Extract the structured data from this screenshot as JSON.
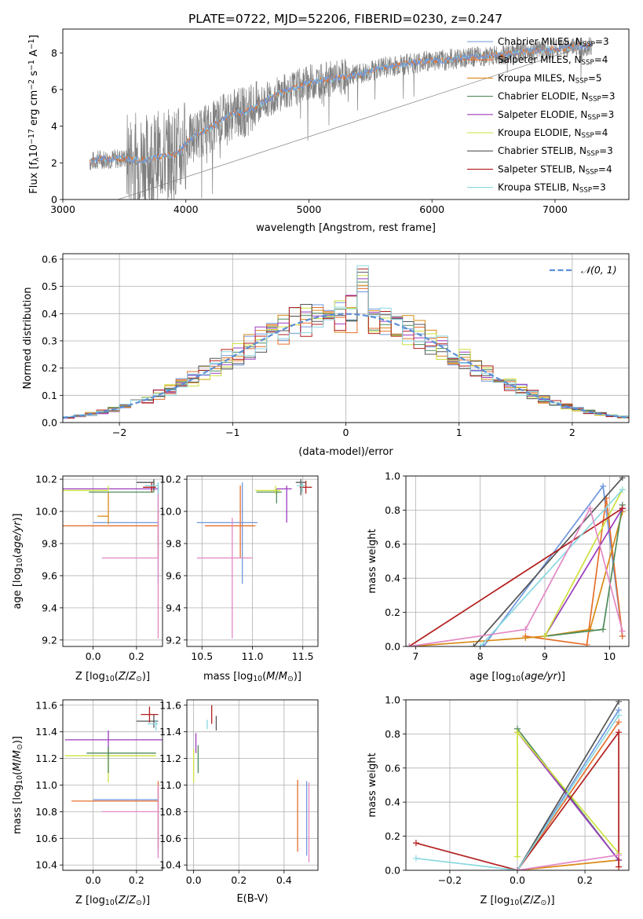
{
  "figure_title": "PLATE=0722, MJD=52206, FIBERID=0230, z=0.247",
  "colors": {
    "Chabrier MILES": "#6f97de",
    "Salpeter MILES": "#e56f2c",
    "Kroupa MILES": "#d98a16",
    "Chabrier ELODIE": "#4f8a5a",
    "Salpeter ELODIE": "#9b3bbf",
    "Kroupa ELODIE": "#cde13c",
    "Chabrier STELIB": "#555555",
    "Salpeter STELIB": "#b31f1f",
    "Kroupa STELIB": "#8ad8e0",
    "Chabrier MILES 2": "#6a8fd8",
    "data": "#7f7f7f",
    "pink": "#e388c4",
    "orange2": "#e0781e"
  },
  "chart_data": [
    {
      "id": "spectrum",
      "type": "line",
      "title": "PLATE=0722, MJD=52206, FIBERID=0230, z=0.247",
      "xlabel": "wavelength [Angstrom, rest frame]",
      "ylabel": "Flux [f",
      "xlim": [
        3000,
        7600
      ],
      "ylim": [
        0,
        9.3
      ],
      "xticks": [
        "3000",
        "4000",
        "5000",
        "6000",
        "7000"
      ],
      "yticks": [
        "0",
        "2",
        "4",
        "6",
        "8"
      ],
      "grid": false,
      "legend_position": "upper-right",
      "continuum_x": [
        3220,
        3300,
        3400,
        3500,
        3600,
        3700,
        3800,
        3900,
        3950,
        4000,
        4100,
        4200,
        4300,
        4400,
        4500,
        4600,
        4700,
        4800,
        4900,
        5000,
        5100,
        5200,
        5300,
        5400,
        5500,
        5600,
        5700,
        5800,
        5900,
        6000,
        6100,
        6200,
        6300,
        6400,
        6500,
        6600,
        6700,
        6800,
        6900,
        7000,
        7100,
        7200,
        7300
      ],
      "continuum_y": [
        2.05,
        2.2,
        2.2,
        2.25,
        2.15,
        2.2,
        2.35,
        2.45,
        2.6,
        3.1,
        3.6,
        3.9,
        4.4,
        4.7,
        4.8,
        5.2,
        5.6,
        5.9,
        6.1,
        6.4,
        6.5,
        6.6,
        6.7,
        6.8,
        7.0,
        7.2,
        7.3,
        7.4,
        7.5,
        7.6,
        7.6,
        7.7,
        7.75,
        7.8,
        7.85,
        7.9,
        8.0,
        8.1,
        8.15,
        8.2,
        8.3,
        8.35,
        8.4
      ],
      "series": [
        {
          "name": "Chabrier MILES, N",
          "sub": "SSP",
          "suffix": "=3"
        },
        {
          "name": "Salpeter MILES, N",
          "sub": "SSP",
          "suffix": "=4"
        },
        {
          "name": "Kroupa MILES, N",
          "sub": "SSP",
          "suffix": "=5"
        },
        {
          "name": "Chabrier ELODIE, N",
          "sub": "SSP",
          "suffix": "=3"
        },
        {
          "name": "Salpeter ELODIE, N",
          "sub": "SSP",
          "suffix": "=3"
        },
        {
          "name": "Kroupa ELODIE, N",
          "sub": "SSP",
          "suffix": "=4"
        },
        {
          "name": "Chabrier STELIB, N",
          "sub": "SSP",
          "suffix": "=3"
        },
        {
          "name": "Salpeter STELIB, N",
          "sub": "SSP",
          "suffix": "=4"
        },
        {
          "name": "Kroupa STELIB, N",
          "sub": "SSP",
          "suffix": "=3"
        }
      ]
    },
    {
      "id": "residuals",
      "type": "histogram",
      "xlabel": "(data-model)/error",
      "ylabel": "Normed distribution",
      "xlim": [
        -2.5,
        2.5
      ],
      "ylim": [
        0,
        0.62
      ],
      "xticks": [
        "−2",
        "−1",
        "0",
        "1",
        "2"
      ],
      "yticks": [
        "0.0",
        "0.1",
        "0.2",
        "0.3",
        "0.4",
        "0.5",
        "0.6"
      ],
      "grid": true,
      "legend_position": "upper-right",
      "legend": "𝒩(0, 1)",
      "bin_width": 0.1
    },
    {
      "id": "age-vs-Z",
      "type": "scatter",
      "xlabel": "Z [log",
      "ylabel": "age  [log",
      "xlim": [
        -0.14,
        0.32
      ],
      "ylim": [
        9.16,
        10.22
      ],
      "xticks": [
        "0.0",
        "0.2"
      ],
      "yticks": [
        "9.2",
        "9.4",
        "9.6",
        "9.8",
        "10.0",
        "10.2"
      ],
      "grid": true,
      "points": [
        {
          "series": "Chabrier MILES",
          "x": 0.3,
          "y": 9.93,
          "xerr": [
            0.3,
            0.0
          ],
          "yerr": [
            0.38,
            0.25
          ]
        },
        {
          "series": "Salpeter MILES",
          "x": 0.3,
          "y": 9.91,
          "xerr": [
            0.45,
            0.0
          ],
          "yerr": [
            0.2,
            0.1
          ]
        },
        {
          "series": "Kroupa MILES",
          "x": 0.07,
          "y": 9.97,
          "xerr": [
            0.05,
            0.0
          ],
          "yerr": [
            0.05,
            0.15
          ]
        },
        {
          "series": "Chabrier ELODIE",
          "x": 0.28,
          "y": 10.12,
          "xerr": [
            0.3,
            0.0
          ],
          "yerr": [
            0.0,
            0.04
          ]
        },
        {
          "series": "Salpeter ELODIE",
          "x": 0.3,
          "y": 10.14,
          "xerr": [
            0.45,
            0.0
          ],
          "yerr": [
            0.02,
            0.02
          ]
        },
        {
          "series": "Kroupa ELODIE",
          "x": 0.07,
          "y": 10.13,
          "xerr": [
            0.3,
            0.0
          ],
          "yerr": [
            0.0,
            0.03
          ]
        },
        {
          "series": "Chabrier STELIB",
          "x": 0.28,
          "y": 10.18,
          "xerr": [
            0.08,
            0.0
          ],
          "yerr": [
            0.05,
            0.02
          ]
        },
        {
          "series": "Salpeter STELIB",
          "x": 0.27,
          "y": 10.15,
          "xerr": [
            0.04,
            0.02
          ],
          "yerr": [
            0.03,
            0.03
          ]
        },
        {
          "series": "Kroupa STELIB",
          "x": 0.3,
          "y": 10.16,
          "xerr": [
            0.06,
            0.0
          ],
          "yerr": [
            0.06,
            0.02
          ]
        },
        {
          "series": "pink",
          "x": 0.3,
          "y": 9.71,
          "xerr": [
            0.26,
            0.0
          ],
          "yerr": [
            0.5,
            0.4
          ]
        }
      ]
    },
    {
      "id": "age-vs-mass",
      "type": "scatter",
      "xlabel": "mass [log",
      "ylabel": "",
      "xlim": [
        10.35,
        11.65
      ],
      "ylim": [
        9.16,
        10.22
      ],
      "xticks": [
        "10.5",
        "11.0",
        "11.5"
      ],
      "yticks": [
        "9.2",
        "9.4",
        "9.6",
        "9.8",
        "10.0",
        "10.2"
      ],
      "grid": true,
      "points": [
        {
          "series": "Chabrier MILES",
          "x": 10.9,
          "y": 9.93,
          "xerr": [
            0.45,
            0.15
          ],
          "yerr": [
            0.38,
            0.25
          ]
        },
        {
          "series": "Salpeter MILES",
          "x": 10.88,
          "y": 9.91,
          "xerr": [
            0.35,
            0.15
          ],
          "yerr": [
            0.2,
            0.25
          ]
        },
        {
          "series": "pink",
          "x": 10.8,
          "y": 9.71,
          "xerr": [
            0.35,
            0.2
          ],
          "yerr": [
            0.5,
            0.25
          ]
        },
        {
          "series": "Chabrier ELODIE",
          "x": 11.24,
          "y": 10.12,
          "xerr": [
            0.2,
            0.05
          ],
          "yerr": [
            0.07,
            0.02
          ]
        },
        {
          "series": "Kroupa ELODIE",
          "x": 11.23,
          "y": 10.13,
          "xerr": [
            0.2,
            0.05
          ],
          "yerr": [
            0.02,
            0.03
          ]
        },
        {
          "series": "Salpeter ELODIE",
          "x": 11.34,
          "y": 10.14,
          "xerr": [
            0.1,
            0.05
          ],
          "yerr": [
            0.21,
            0.02
          ]
        },
        {
          "series": "Chabrier STELIB",
          "x": 11.48,
          "y": 10.18,
          "xerr": [
            0.05,
            0.05
          ],
          "yerr": [
            0.08,
            0.02
          ]
        },
        {
          "series": "Salpeter STELIB",
          "x": 11.53,
          "y": 10.15,
          "xerr": [
            0.06,
            0.06
          ],
          "yerr": [
            0.04,
            0.04
          ]
        },
        {
          "series": "Kroupa STELIB",
          "x": 11.49,
          "y": 10.16,
          "xerr": [
            0.05,
            0.03
          ],
          "yerr": [
            0.04,
            0.02
          ]
        }
      ]
    },
    {
      "id": "mass-weight-vs-age",
      "type": "line",
      "xlabel": "age  [log",
      "ylabel": "mass weight",
      "xlim": [
        6.85,
        10.3
      ],
      "ylim": [
        0,
        1.0
      ],
      "xticks": [
        "7",
        "8",
        "9",
        "10"
      ],
      "yticks": [
        "0.0",
        "0.2",
        "0.4",
        "0.6",
        "0.8",
        "1.0"
      ],
      "grid": true,
      "series": [
        {
          "name": "Chabrier MILES",
          "x": [
            8.05,
            9.9,
            10.2
          ],
          "y": [
            0.0,
            0.94,
            0.06
          ]
        },
        {
          "name": "Salpeter MILES",
          "x": [
            8.7,
            9.65,
            9.95,
            10.2
          ],
          "y": [
            0.06,
            0.01,
            0.87,
            0.06
          ]
        },
        {
          "name": "Kroupa MILES",
          "x": [
            6.9,
            8.7,
            9.0,
            9.7,
            10.2
          ],
          "y": [
            0.0,
            0.05,
            0.06,
            0.1,
            0.79
          ]
        },
        {
          "name": "Chabrier ELODIE",
          "x": [
            9.0,
            9.9,
            10.2
          ],
          "y": [
            0.06,
            0.1,
            0.83
          ]
        },
        {
          "name": "Salpeter ELODIE",
          "x": [
            9.0,
            10.2
          ],
          "y": [
            0.06,
            0.81
          ]
        },
        {
          "name": "Kroupa ELODIE",
          "x": [
            9.0,
            10.2
          ],
          "y": [
            0.06,
            0.92
          ]
        },
        {
          "name": "Chabrier STELIB",
          "x": [
            7.9,
            10.2
          ],
          "y": [
            0.0,
            0.99
          ]
        },
        {
          "name": "Salpeter STELIB",
          "x": [
            6.9,
            10.2
          ],
          "y": [
            0.0,
            0.81
          ]
        },
        {
          "name": "Kroupa STELIB",
          "x": [
            8.0,
            10.2
          ],
          "y": [
            0.0,
            0.92
          ]
        },
        {
          "name": "pink",
          "x": [
            6.9,
            8.7,
            9.7,
            10.2
          ],
          "y": [
            0.0,
            0.1,
            0.81,
            0.09
          ]
        }
      ]
    },
    {
      "id": "mass-vs-Z",
      "type": "scatter",
      "xlabel": "Z [log",
      "ylabel": "mass [log",
      "xlim": [
        -0.14,
        0.32
      ],
      "ylim": [
        10.36,
        11.64
      ],
      "xticks": [
        "0.0",
        "0.2"
      ],
      "yticks": [
        "10.4",
        "10.6",
        "10.8",
        "11.0",
        "11.2",
        "11.4",
        "11.6"
      ],
      "grid": true,
      "points": [
        {
          "series": "Chabrier MILES",
          "x": 0.3,
          "y": 10.89,
          "xerr": [
            0.3,
            0.0
          ],
          "yerr": [
            0.4,
            0.1
          ]
        },
        {
          "series": "Salpeter MILES",
          "x": 0.3,
          "y": 10.88,
          "xerr": [
            0.4,
            0.0
          ],
          "yerr": [
            0.35,
            0.15
          ]
        },
        {
          "series": "pink",
          "x": 0.3,
          "y": 10.8,
          "xerr": [
            0.26,
            0.0
          ],
          "yerr": [
            0.35,
            0.2
          ]
        },
        {
          "series": "Salpeter ELODIE",
          "x": 0.07,
          "y": 11.34,
          "xerr": [
            0.2,
            0.28
          ],
          "yerr": [
            0.1,
            0.07
          ]
        },
        {
          "series": "Kroupa ELODIE",
          "x": 0.07,
          "y": 11.22,
          "xerr": [
            0.2,
            0.22
          ],
          "yerr": [
            0.2,
            0.05
          ]
        },
        {
          "series": "Chabrier ELODIE",
          "x": 0.07,
          "y": 11.24,
          "xerr": [
            0.1,
            0.22
          ],
          "yerr": [
            0.15,
            0.05
          ]
        },
        {
          "series": "Chabrier STELIB",
          "x": 0.28,
          "y": 11.48,
          "xerr": [
            0.08,
            0.02
          ],
          "yerr": [
            0.05,
            0.05
          ]
        },
        {
          "series": "Salpeter STELIB",
          "x": 0.26,
          "y": 11.53,
          "xerr": [
            0.04,
            0.04
          ],
          "yerr": [
            0.06,
            0.06
          ]
        },
        {
          "series": "Kroupa STELIB",
          "x": 0.29,
          "y": 11.46,
          "xerr": [
            0.04,
            0.01
          ],
          "yerr": [
            0.05,
            0.03
          ]
        }
      ]
    },
    {
      "id": "mass-vs-ebv",
      "type": "scatter",
      "xlabel": "E(B-V)",
      "ylabel": "",
      "xlim": [
        -0.03,
        0.55
      ],
      "ylim": [
        10.36,
        11.64
      ],
      "xticks": [
        "0.0",
        "0.2",
        "0.4"
      ],
      "yticks": [
        "10.4",
        "10.6",
        "10.8",
        "11.0",
        "11.2",
        "11.4",
        "11.6"
      ],
      "grid": true,
      "points": [
        {
          "series": "Chabrier MILES",
          "x": 0.5,
          "y": 10.89,
          "xerr": [
            0.0,
            0.0
          ],
          "yerr": [
            0.42,
            0.14
          ]
        },
        {
          "series": "Salpeter MILES",
          "x": 0.46,
          "y": 10.88,
          "xerr": [
            0.0,
            0.0
          ],
          "yerr": [
            0.38,
            0.16
          ]
        },
        {
          "series": "pink",
          "x": 0.51,
          "y": 10.8,
          "xerr": [
            0.0,
            0.0
          ],
          "yerr": [
            0.38,
            0.22
          ]
        },
        {
          "series": "Salpeter ELODIE",
          "x": 0.01,
          "y": 11.34,
          "xerr": [
            0.0,
            0.0
          ],
          "yerr": [
            0.1,
            0.05
          ]
        },
        {
          "series": "Kroupa ELODIE",
          "x": 0.0,
          "y": 11.22,
          "xerr": [
            0.0,
            0.0
          ],
          "yerr": [
            0.2,
            0.05
          ]
        },
        {
          "series": "Chabrier ELODIE",
          "x": 0.02,
          "y": 11.24,
          "xerr": [
            0.0,
            0.0
          ],
          "yerr": [
            0.15,
            0.06
          ]
        },
        {
          "series": "Chabrier STELIB",
          "x": 0.1,
          "y": 11.48,
          "xerr": [
            0.0,
            0.0
          ],
          "yerr": [
            0.07,
            0.04
          ]
        },
        {
          "series": "Salpeter STELIB",
          "x": 0.08,
          "y": 11.53,
          "xerr": [
            0.0,
            0.0
          ],
          "yerr": [
            0.07,
            0.07
          ]
        },
        {
          "series": "Kroupa STELIB",
          "x": 0.06,
          "y": 11.46,
          "xerr": [
            0.0,
            0.0
          ],
          "yerr": [
            0.04,
            0.03
          ]
        }
      ]
    },
    {
      "id": "mass-weight-vs-Z",
      "type": "line",
      "xlabel": "Z [log",
      "ylabel": "mass weight",
      "xlim": [
        -0.33,
        0.33
      ],
      "ylim": [
        0,
        1.0
      ],
      "xticks": [
        "−0.2",
        "0.0",
        "0.2"
      ],
      "yticks": [
        "0.0",
        "0.2",
        "0.4",
        "0.6",
        "0.8",
        "1.0"
      ],
      "grid": true,
      "series": [
        {
          "name": "Chabrier MILES",
          "x": [
            0.0,
            0.3
          ],
          "y": [
            0.0,
            0.94
          ]
        },
        {
          "name": "Salpeter MILES",
          "x": [
            0.0,
            0.3
          ],
          "y": [
            0.0,
            0.87
          ]
        },
        {
          "name": "Kroupa MILES",
          "x": [
            0.0,
            0.3
          ],
          "y": [
            0.0,
            0.06
          ]
        },
        {
          "name": "Chabrier ELODIE",
          "x": [
            0.0,
            0.3
          ],
          "y": [
            0.83,
            0.06
          ]
        },
        {
          "name": "Salpeter ELODIE",
          "x": [
            0.0,
            0.3
          ],
          "y": [
            0.81,
            0.06
          ]
        },
        {
          "name": "Kroupa ELODIE",
          "x": [
            0.0,
            0.0,
            0.3
          ],
          "y": [
            0.08,
            0.81,
            0.1
          ]
        },
        {
          "name": "Chabrier STELIB",
          "x": [
            0.0,
            0.3
          ],
          "y": [
            0.0,
            0.99
          ]
        },
        {
          "name": "Salpeter STELIB",
          "x": [
            -0.3,
            0.0,
            0.3,
            0.3
          ],
          "y": [
            0.16,
            0.0,
            0.81,
            0.02
          ]
        },
        {
          "name": "Kroupa STELIB",
          "x": [
            -0.3,
            0.0,
            0.3
          ],
          "y": [
            0.07,
            0.0,
            0.91
          ]
        },
        {
          "name": "pink",
          "x": [
            0.0,
            0.3
          ],
          "y": [
            0.0,
            0.09
          ]
        }
      ]
    }
  ]
}
